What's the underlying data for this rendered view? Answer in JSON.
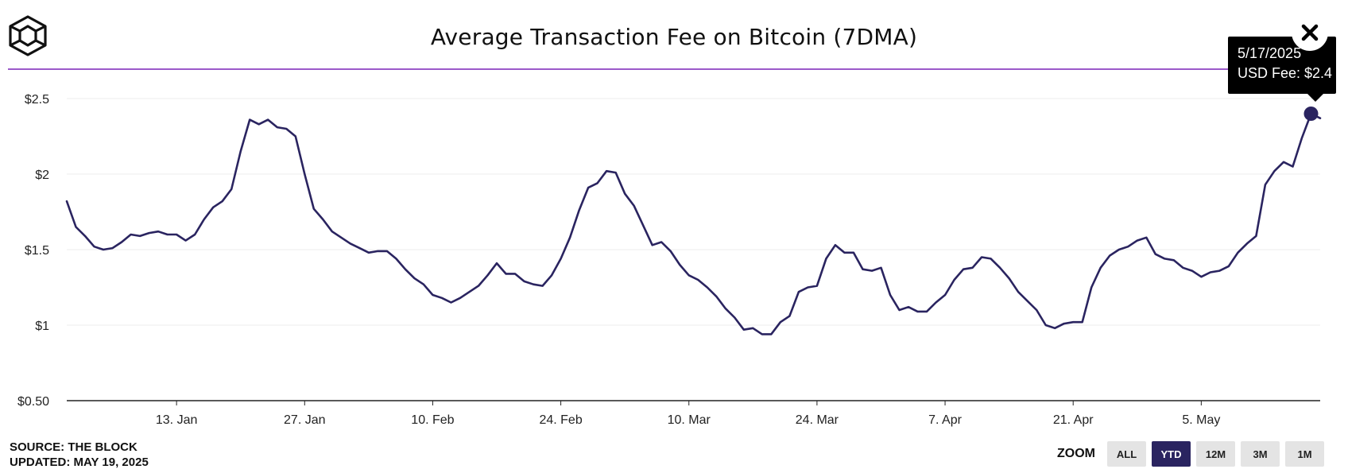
{
  "header": {
    "title": "Average Transaction Fee on Bitcoin (7DMA)",
    "logo_icon": "the-block-cube-logo-icon",
    "close_icon": "close-icon"
  },
  "tooltip": {
    "date": "5/17/2025",
    "value_label": "USD Fee: $2.4"
  },
  "footer": {
    "source": "SOURCE: THE BLOCK",
    "updated": "UPDATED: MAY 19, 2025"
  },
  "zoom": {
    "label": "ZOOM",
    "buttons": [
      "ALL",
      "YTD",
      "12M",
      "3M",
      "1M"
    ],
    "active": "YTD"
  },
  "colors": {
    "line": "#2a2460",
    "accent_rule": "#9b59c9",
    "active_zoom": "#2a2460"
  },
  "chart_data": {
    "type": "line",
    "title": "Average Transaction Fee on Bitcoin (7DMA)",
    "xlabel": "",
    "ylabel": "",
    "x_range": [
      "2025-01-01",
      "2025-05-18"
    ],
    "ylim": [
      0.5,
      2.5
    ],
    "y_ticks": [
      0.5,
      1,
      1.5,
      2,
      2.5
    ],
    "y_tick_labels": [
      "$0.50",
      "$1",
      "$1.5",
      "$2",
      "$2.5"
    ],
    "x_ticks": [
      "2025-01-13",
      "2025-01-27",
      "2025-02-10",
      "2025-02-24",
      "2025-03-10",
      "2025-03-24",
      "2025-04-07",
      "2025-04-21",
      "2025-05-05"
    ],
    "x_tick_labels": [
      "13. Jan",
      "27. Jan",
      "10. Feb",
      "24. Feb",
      "10. Mar",
      "24. Mar",
      "7. Apr",
      "21. Apr",
      "5. May"
    ],
    "grid": "horizontal",
    "series": [
      {
        "values": [
          [
            "2025-01-01",
            1.82
          ],
          [
            "2025-01-02",
            1.65
          ],
          [
            "2025-01-03",
            1.59
          ],
          [
            "2025-01-04",
            1.52
          ],
          [
            "2025-01-05",
            1.5
          ],
          [
            "2025-01-06",
            1.51
          ],
          [
            "2025-01-07",
            1.55
          ],
          [
            "2025-01-08",
            1.6
          ],
          [
            "2025-01-09",
            1.59
          ],
          [
            "2025-01-10",
            1.61
          ],
          [
            "2025-01-11",
            1.62
          ],
          [
            "2025-01-12",
            1.6
          ],
          [
            "2025-01-13",
            1.6
          ],
          [
            "2025-01-14",
            1.56
          ],
          [
            "2025-01-15",
            1.6
          ],
          [
            "2025-01-16",
            1.7
          ],
          [
            "2025-01-17",
            1.78
          ],
          [
            "2025-01-18",
            1.82
          ],
          [
            "2025-01-19",
            1.9
          ],
          [
            "2025-01-20",
            2.15
          ],
          [
            "2025-01-21",
            2.36
          ],
          [
            "2025-01-22",
            2.33
          ],
          [
            "2025-01-23",
            2.36
          ],
          [
            "2025-01-24",
            2.31
          ],
          [
            "2025-01-25",
            2.3
          ],
          [
            "2025-01-26",
            2.25
          ],
          [
            "2025-01-27",
            2.0
          ],
          [
            "2025-01-28",
            1.77
          ],
          [
            "2025-01-29",
            1.7
          ],
          [
            "2025-01-30",
            1.62
          ],
          [
            "2025-01-31",
            1.58
          ],
          [
            "2025-02-01",
            1.54
          ],
          [
            "2025-02-02",
            1.51
          ],
          [
            "2025-02-03",
            1.48
          ],
          [
            "2025-02-04",
            1.49
          ],
          [
            "2025-02-05",
            1.49
          ],
          [
            "2025-02-06",
            1.44
          ],
          [
            "2025-02-07",
            1.37
          ],
          [
            "2025-02-08",
            1.31
          ],
          [
            "2025-02-09",
            1.27
          ],
          [
            "2025-02-10",
            1.2
          ],
          [
            "2025-02-11",
            1.18
          ],
          [
            "2025-02-12",
            1.15
          ],
          [
            "2025-02-13",
            1.18
          ],
          [
            "2025-02-14",
            1.22
          ],
          [
            "2025-02-15",
            1.26
          ],
          [
            "2025-02-16",
            1.33
          ],
          [
            "2025-02-17",
            1.41
          ],
          [
            "2025-02-18",
            1.34
          ],
          [
            "2025-02-19",
            1.34
          ],
          [
            "2025-02-20",
            1.29
          ],
          [
            "2025-02-21",
            1.27
          ],
          [
            "2025-02-22",
            1.26
          ],
          [
            "2025-02-23",
            1.33
          ],
          [
            "2025-02-24",
            1.44
          ],
          [
            "2025-02-25",
            1.58
          ],
          [
            "2025-02-26",
            1.76
          ],
          [
            "2025-02-27",
            1.91
          ],
          [
            "2025-02-28",
            1.94
          ],
          [
            "2025-03-01",
            2.02
          ],
          [
            "2025-03-02",
            2.01
          ],
          [
            "2025-03-03",
            1.87
          ],
          [
            "2025-03-04",
            1.79
          ],
          [
            "2025-03-05",
            1.66
          ],
          [
            "2025-03-06",
            1.53
          ],
          [
            "2025-03-07",
            1.55
          ],
          [
            "2025-03-08",
            1.49
          ],
          [
            "2025-03-09",
            1.4
          ],
          [
            "2025-03-10",
            1.33
          ],
          [
            "2025-03-11",
            1.3
          ],
          [
            "2025-03-12",
            1.25
          ],
          [
            "2025-03-13",
            1.19
          ],
          [
            "2025-03-14",
            1.11
          ],
          [
            "2025-03-15",
            1.05
          ],
          [
            "2025-03-16",
            0.97
          ],
          [
            "2025-03-17",
            0.98
          ],
          [
            "2025-03-18",
            0.94
          ],
          [
            "2025-03-19",
            0.94
          ],
          [
            "2025-03-20",
            1.02
          ],
          [
            "2025-03-21",
            1.06
          ],
          [
            "2025-03-22",
            1.22
          ],
          [
            "2025-03-23",
            1.25
          ],
          [
            "2025-03-24",
            1.26
          ],
          [
            "2025-03-25",
            1.44
          ],
          [
            "2025-03-26",
            1.53
          ],
          [
            "2025-03-27",
            1.48
          ],
          [
            "2025-03-28",
            1.48
          ],
          [
            "2025-03-29",
            1.37
          ],
          [
            "2025-03-30",
            1.36
          ],
          [
            "2025-03-31",
            1.38
          ],
          [
            "2025-04-01",
            1.2
          ],
          [
            "2025-04-02",
            1.1
          ],
          [
            "2025-04-03",
            1.12
          ],
          [
            "2025-04-04",
            1.09
          ],
          [
            "2025-04-05",
            1.09
          ],
          [
            "2025-04-06",
            1.15
          ],
          [
            "2025-04-07",
            1.2
          ],
          [
            "2025-04-08",
            1.3
          ],
          [
            "2025-04-09",
            1.37
          ],
          [
            "2025-04-10",
            1.38
          ],
          [
            "2025-04-11",
            1.45
          ],
          [
            "2025-04-12",
            1.44
          ],
          [
            "2025-04-13",
            1.38
          ],
          [
            "2025-04-14",
            1.31
          ],
          [
            "2025-04-15",
            1.22
          ],
          [
            "2025-04-16",
            1.16
          ],
          [
            "2025-04-17",
            1.1
          ],
          [
            "2025-04-18",
            1.0
          ],
          [
            "2025-04-19",
            0.98
          ],
          [
            "2025-04-20",
            1.01
          ],
          [
            "2025-04-21",
            1.02
          ],
          [
            "2025-04-22",
            1.02
          ],
          [
            "2025-04-23",
            1.25
          ],
          [
            "2025-04-24",
            1.38
          ],
          [
            "2025-04-25",
            1.46
          ],
          [
            "2025-04-26",
            1.5
          ],
          [
            "2025-04-27",
            1.52
          ],
          [
            "2025-04-28",
            1.56
          ],
          [
            "2025-04-29",
            1.58
          ],
          [
            "2025-04-30",
            1.47
          ],
          [
            "2025-05-01",
            1.44
          ],
          [
            "2025-05-02",
            1.43
          ],
          [
            "2025-05-03",
            1.38
          ],
          [
            "2025-05-04",
            1.36
          ],
          [
            "2025-05-05",
            1.32
          ],
          [
            "2025-05-06",
            1.35
          ],
          [
            "2025-05-07",
            1.36
          ],
          [
            "2025-05-08",
            1.39
          ],
          [
            "2025-05-09",
            1.48
          ],
          [
            "2025-05-10",
            1.54
          ],
          [
            "2025-05-11",
            1.59
          ],
          [
            "2025-05-12",
            1.93
          ],
          [
            "2025-05-13",
            2.02
          ],
          [
            "2025-05-14",
            2.08
          ],
          [
            "2025-05-15",
            2.05
          ],
          [
            "2025-05-16",
            2.24
          ],
          [
            "2025-05-17",
            2.4
          ],
          [
            "2025-05-18",
            2.37
          ]
        ]
      }
    ],
    "highlight": {
      "date": "2025-05-17",
      "value": 2.4
    }
  }
}
